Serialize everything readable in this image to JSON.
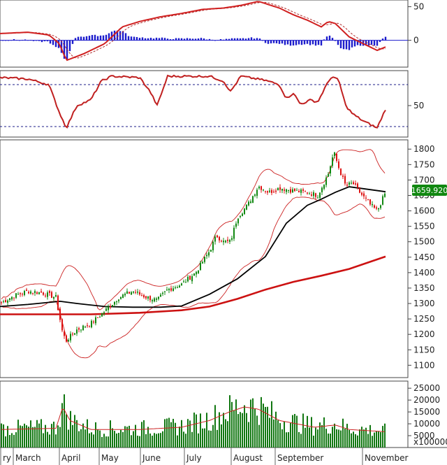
{
  "chart_data": [
    {
      "panel": "macd",
      "type": "line",
      "y_ticks": [
        "50",
        "0"
      ],
      "ylim": [
        -40,
        60
      ],
      "colors": {
        "macd": "#d02020",
        "signal": "#b03030",
        "histogram": "#1c1ccc"
      },
      "grid": false
    },
    {
      "panel": "oscillator",
      "type": "line",
      "y_ticks": [
        "50"
      ],
      "ylim": [
        5,
        100
      ],
      "reference_levels": [
        80,
        20
      ],
      "colors": {
        "line": "#c02020"
      },
      "grid": false
    },
    {
      "panel": "price",
      "type": "candlestick",
      "y_ticks": [
        "1800",
        "1750",
        "1700",
        "1650",
        "1600",
        "1550",
        "1500",
        "1450",
        "1400",
        "1350",
        "1300",
        "1250",
        "1200",
        "1150",
        "1100"
      ],
      "ylim": [
        1060,
        1830
      ],
      "last_price_label": "1659.920",
      "colors": {
        "up": "#118811",
        "down": "#dd1111",
        "ma_long": "#cc1111",
        "ma_mid": "#000000",
        "bands": "#cc2222",
        "price_label_bg": "#118811"
      },
      "series": [
        {
          "name": "",
          "kind": "long moving average",
          "points": [
            [
              0,
              1265
            ],
            [
              80,
              1265
            ],
            [
              130,
              1265
            ],
            [
              200,
              1270
            ],
            [
              260,
              1278
            ],
            [
              300,
              1290
            ],
            [
              340,
              1315
            ],
            [
              380,
              1345
            ],
            [
              420,
              1370
            ],
            [
              460,
              1390
            ],
            [
              500,
              1412
            ],
            [
              552,
              1452
            ]
          ]
        },
        {
          "name": "",
          "kind": "mid moving average",
          "points": [
            [
              0,
              1290
            ],
            [
              40,
              1297
            ],
            [
              86,
              1307
            ],
            [
              110,
              1300
            ],
            [
              150,
              1290
            ],
            [
              190,
              1288
            ],
            [
              230,
              1288
            ],
            [
              260,
              1292
            ],
            [
              300,
              1330
            ],
            [
              340,
              1380
            ],
            [
              380,
              1452
            ],
            [
              410,
              1560
            ],
            [
              440,
              1618
            ],
            [
              460,
              1638
            ],
            [
              480,
              1660
            ],
            [
              500,
              1678
            ],
            [
              520,
              1672
            ],
            [
              552,
              1662
            ]
          ]
        }
      ],
      "last_close": 1660
    },
    {
      "panel": "volume",
      "type": "bar",
      "y_ticks": [
        "25000",
        "20000",
        "15000",
        "10000",
        "5000"
      ],
      "ylim": [
        0,
        28000
      ],
      "unit_label": "x100000",
      "colors": {
        "bars": "#117711",
        "average": "#cc2222"
      },
      "grid": false
    }
  ],
  "x_axis": {
    "months": [
      {
        "label": "ry",
        "x": 0
      },
      {
        "label": "March",
        "x": 18
      },
      {
        "label": "April",
        "x": 84
      },
      {
        "label": "May",
        "x": 141
      },
      {
        "label": "June",
        "x": 200
      },
      {
        "label": "July",
        "x": 263
      },
      {
        "label": "August",
        "x": 330
      },
      {
        "label": "September",
        "x": 393
      },
      {
        "label": "November",
        "x": 518
      }
    ]
  }
}
